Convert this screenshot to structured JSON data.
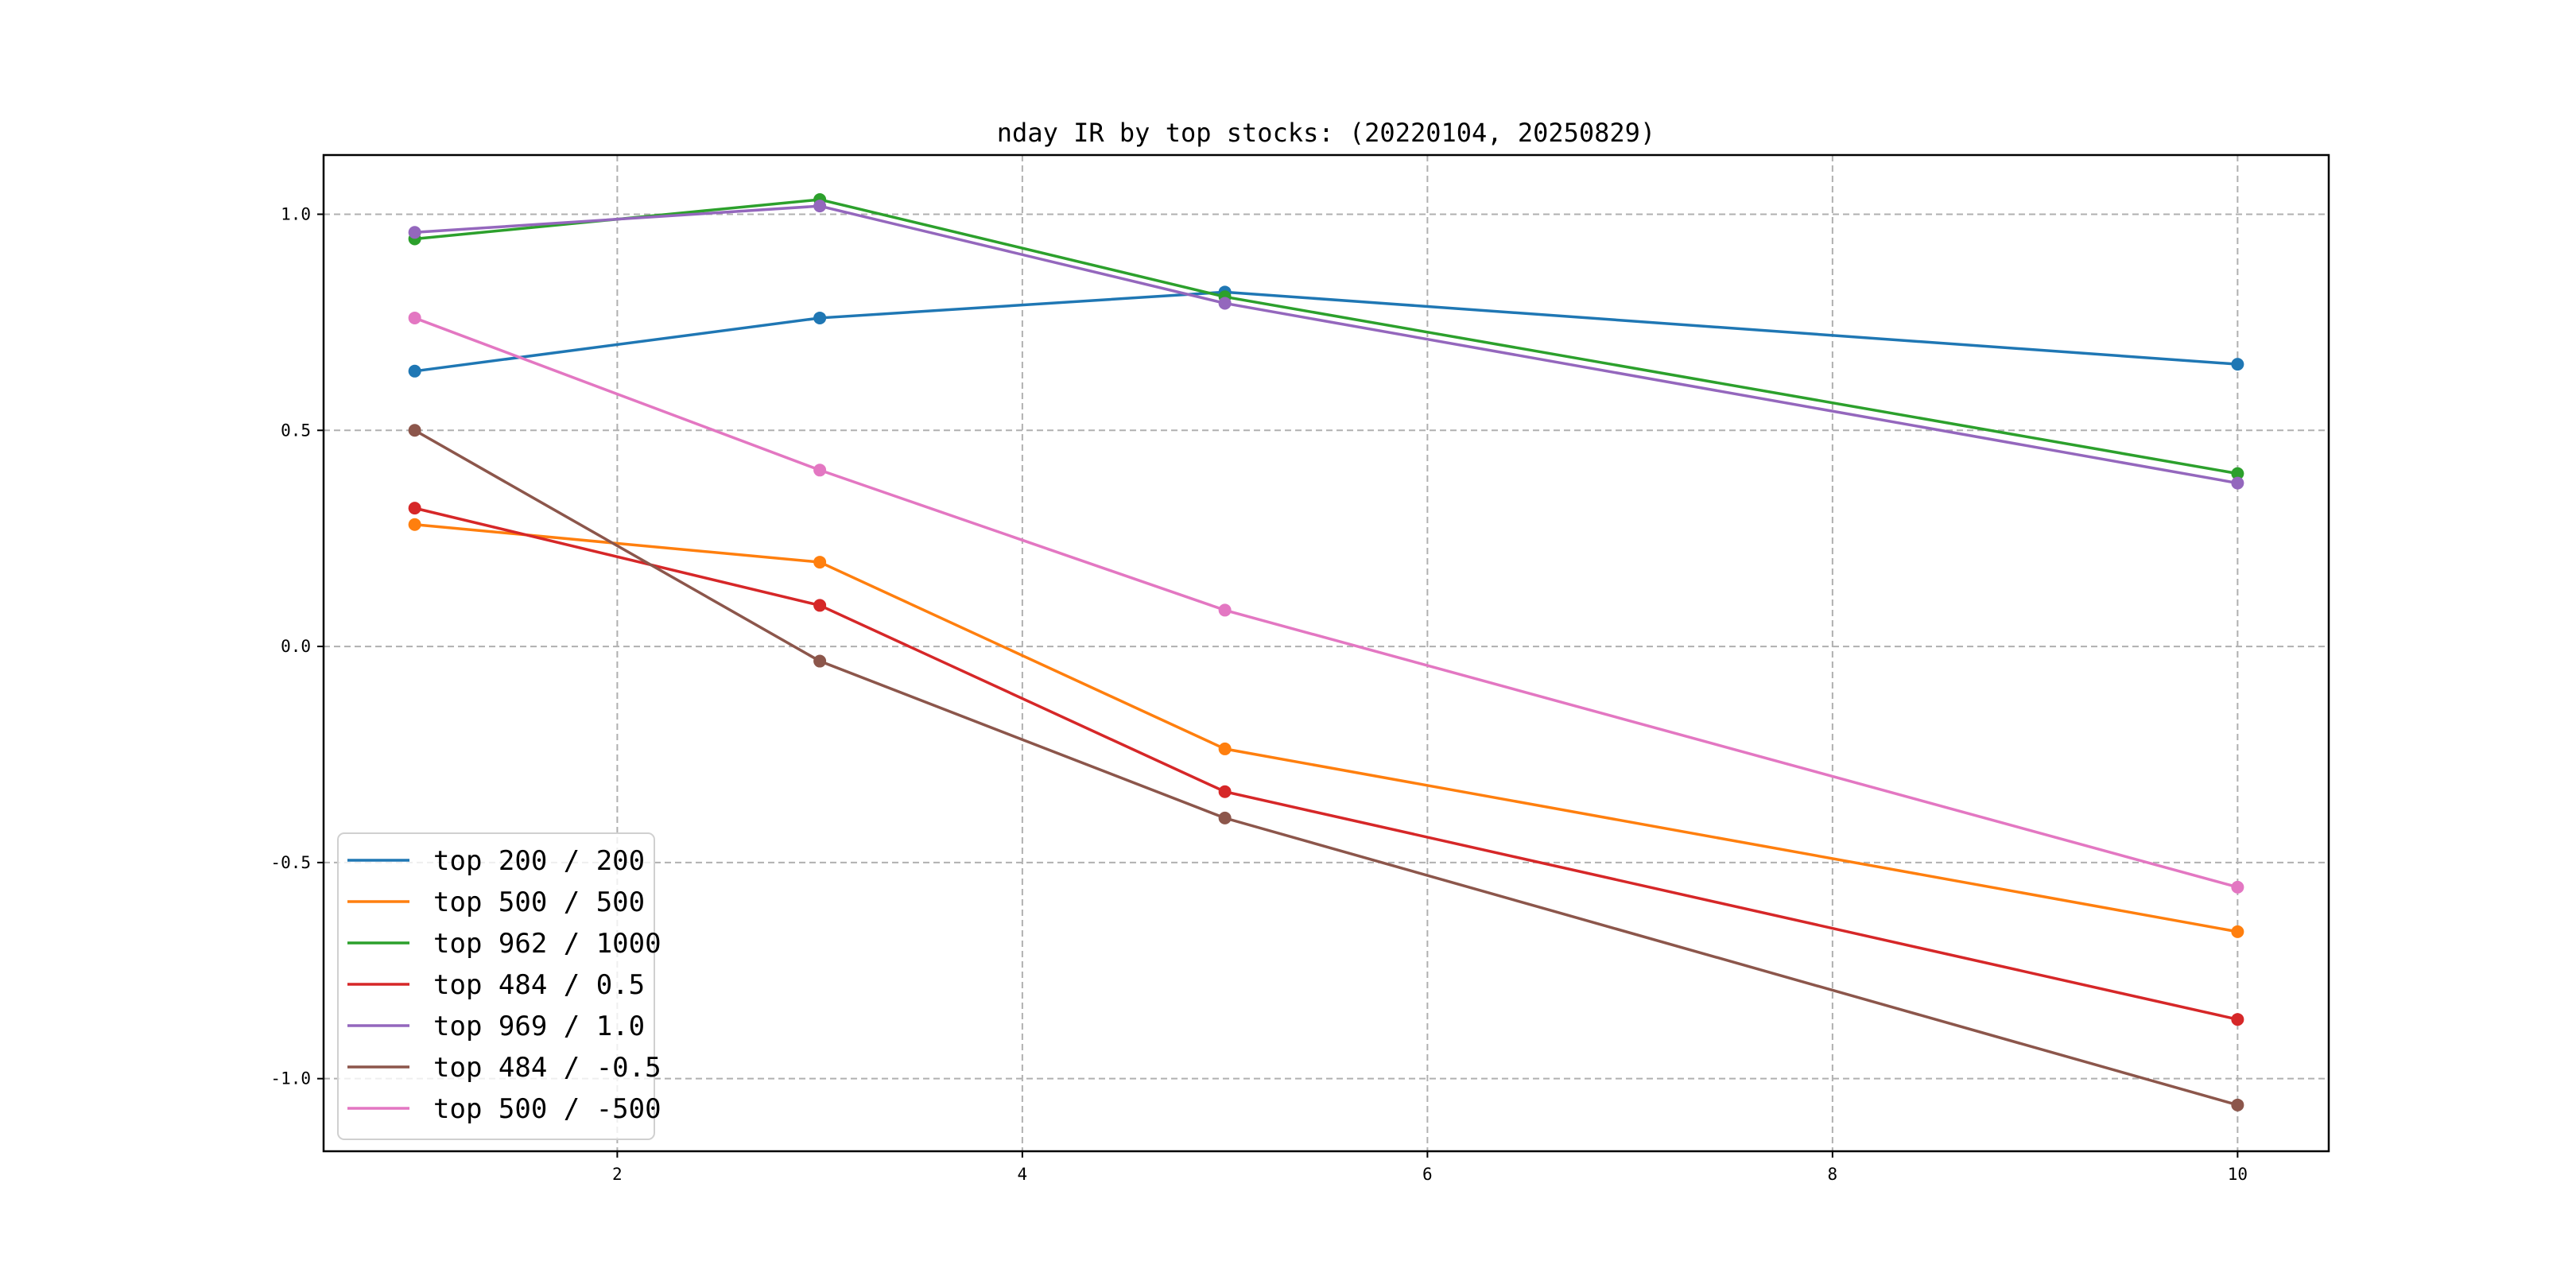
{
  "chart_data": {
    "type": "line",
    "title": "nday IR by top stocks: (20220104, 20250829)",
    "xlabel": "",
    "ylabel": "",
    "x": [
      1,
      3,
      5,
      10
    ],
    "xlim": [
      0.55,
      10.45
    ],
    "ylim": [
      -1.168,
      1.137
    ],
    "xticks": [
      2,
      4,
      6,
      8,
      10
    ],
    "xtick_labels": [
      "2",
      "4",
      "6",
      "8",
      "10"
    ],
    "yticks": [
      1.0,
      0.5,
      0.0,
      -0.5,
      -1.0
    ],
    "ytick_labels": [
      "1.0",
      "0.5",
      "0.0",
      "-0.5",
      "-1.0"
    ],
    "grid": true,
    "legend_position": "lower-left",
    "series": [
      {
        "name": "top 200 / 200",
        "color": "#1f77b4",
        "values": [
          0.637,
          0.76,
          0.82,
          0.653
        ]
      },
      {
        "name": "top 500 / 500",
        "color": "#ff7f0e",
        "values": [
          0.282,
          0.195,
          -0.237,
          -0.66
        ]
      },
      {
        "name": "top 962 / 1000",
        "color": "#2ca02c",
        "values": [
          0.943,
          1.034,
          0.809,
          0.4
        ]
      },
      {
        "name": "top 484 / 0.5",
        "color": "#d62728",
        "values": [
          0.32,
          0.095,
          -0.336,
          -0.863
        ]
      },
      {
        "name": "top 969 / 1.0",
        "color": "#9467bd",
        "values": [
          0.958,
          1.019,
          0.794,
          0.378
        ]
      },
      {
        "name": "top 484 / -0.5",
        "color": "#8c564b",
        "values": [
          0.5,
          -0.034,
          -0.397,
          -1.061
        ]
      },
      {
        "name": "top 500 / -500",
        "color": "#e377c2",
        "values": [
          0.76,
          0.408,
          0.084,
          -0.557
        ]
      }
    ]
  }
}
